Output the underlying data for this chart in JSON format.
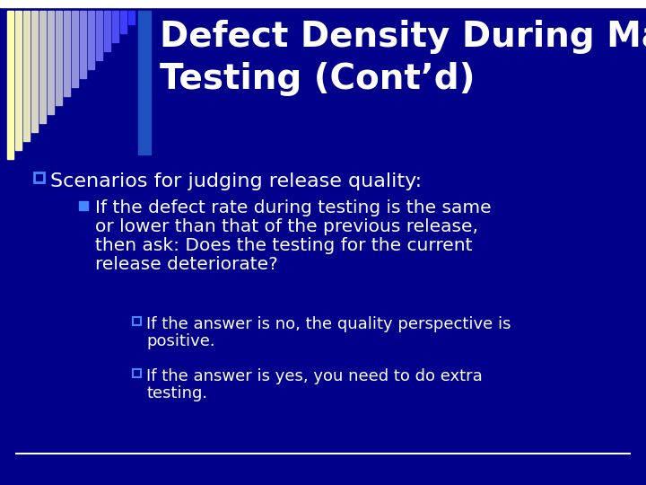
{
  "bg_color": "#00008B",
  "title_color": "#FFFFFF",
  "text_color": "#FFFFFF",
  "title": "Defect Density During Machine\nTesting (Cont’d)",
  "title_fontsize": 28,
  "body_fontsize": 16,
  "sub_fontsize": 14.5,
  "subsub_fontsize": 13,
  "line_color": "#FFFFFF",
  "level1": "Scenarios for judging release quality:",
  "level2_line1": "If the defect rate during testing is the same",
  "level2_line2": "or lower than that of the previous release,",
  "level2_line3": "then ask: Does the testing for the current",
  "level2_line4": "release deteriorate?",
  "level3a_line1": "If the answer is no, the quality perspective is",
  "level3a_line2": "positive.",
  "level3b_line1": "If the answer is yes, you need to do extra",
  "level3b_line2": "testing.",
  "stripe_colors_left": "#FFFFF0",
  "stripe_colors_right": "#3060C8",
  "blue_bar_color": "#1E50C0",
  "top_bar_color": "#FFFFFF",
  "bullet1_color": "#4488FF",
  "bullet2_color": "#3366CC"
}
